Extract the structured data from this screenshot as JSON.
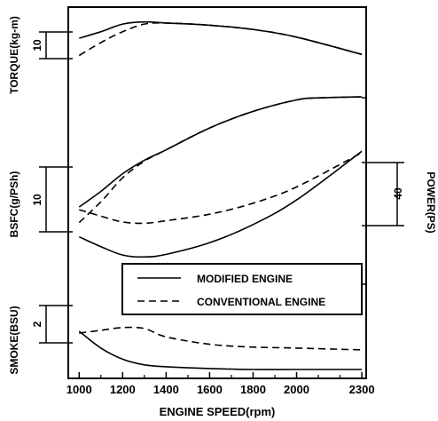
{
  "chart_data": {
    "type": "line",
    "xlabel": "ENGINE SPEED(rpm)",
    "x_ticks": [
      1000,
      1200,
      1400,
      1600,
      1800,
      2000,
      2300
    ],
    "xlim": [
      950,
      2320
    ],
    "panels": [
      {
        "ylabel": "TORQUE(kg-m)",
        "scale_bar_label": "10",
        "series": [
          {
            "name": "MODIFIED ENGINE",
            "style": "solid",
            "x": [
              1000,
              1100,
              1200,
              1300,
              1400,
              1600,
              1800,
              2000,
              2300
            ],
            "values": [
              10.0,
              10.6,
              11.3,
              11.5,
              11.4,
              11.2,
              10.8,
              10.1,
              8.5
            ]
          },
          {
            "name": "CONVENTIONAL ENGINE",
            "style": "dashed",
            "x": [
              1000,
              1100,
              1200,
              1300,
              1400,
              1600,
              1800,
              2000,
              2300
            ],
            "values": [
              8.4,
              9.6,
              10.6,
              11.3,
              11.4,
              11.2,
              10.8,
              10.1,
              8.5
            ]
          }
        ]
      },
      {
        "ylabel": "POWER(PS)",
        "scale_bar_label": "40",
        "series": [
          {
            "name": "MODIFIED ENGINE",
            "style": "solid",
            "x": [
              1000,
              1100,
              1200,
              1300,
              1400,
              1600,
              1800,
              2000,
              2100,
              2300
            ],
            "values": [
              100,
              115,
              132,
              145,
              155,
              176,
              192,
              203,
              205,
              206
            ]
          },
          {
            "name": "CONVENTIONAL ENGINE",
            "style": "dashed",
            "x": [
              1000,
              1100,
              1200,
              1300,
              1400,
              1600,
              1800,
              2000,
              2100,
              2300
            ],
            "values": [
              85,
              105,
              128,
              144,
              155,
              176,
              192,
              203,
              205,
              206
            ]
          }
        ]
      },
      {
        "ylabel": "BSFC(g/PSh)",
        "scale_bar_label": "10",
        "series": [
          {
            "name": "MODIFIED ENGINE",
            "style": "solid",
            "x": [
              1000,
              1100,
              1200,
              1300,
              1400,
              1600,
              1800,
              2000,
              2300
            ],
            "values": [
              7.3,
              5.8,
              4.5,
              4.2,
              4.6,
              6.4,
              9.2,
              13.0,
              20.5
            ]
          },
          {
            "name": "CONVENTIONAL ENGINE",
            "style": "dashed",
            "x": [
              1000,
              1100,
              1200,
              1300,
              1400,
              1600,
              1800,
              2000,
              2300
            ],
            "values": [
              11.5,
              10.5,
              9.6,
              9.4,
              9.8,
              10.8,
              12.5,
              15.0,
              20.3
            ]
          }
        ]
      },
      {
        "ylabel": "SMOKE(BSU)",
        "scale_bar_label": "2",
        "series": [
          {
            "name": "MODIFIED ENGINE",
            "style": "solid",
            "x": [
              1000,
              1100,
              1200,
              1300,
              1400,
              1600,
              1800,
              2000,
              2300
            ],
            "values": [
              2.05,
              1.15,
              0.55,
              0.25,
              0.15,
              0.05,
              0.0,
              0.0,
              0.0
            ]
          },
          {
            "name": "CONVENTIONAL ENGINE",
            "style": "dashed",
            "x": [
              1000,
              1100,
              1200,
              1300,
              1400,
              1600,
              1800,
              2000,
              2300
            ],
            "values": [
              1.95,
              2.1,
              2.25,
              2.2,
              1.75,
              1.35,
              1.2,
              1.15,
              1.05
            ]
          }
        ]
      }
    ],
    "legend": {
      "placement": "lower-right",
      "entries": [
        {
          "label": "MODIFIED ENGINE",
          "style": "solid"
        },
        {
          "label": "CONVENTIONAL ENGINE",
          "style": "dashed"
        }
      ]
    }
  }
}
